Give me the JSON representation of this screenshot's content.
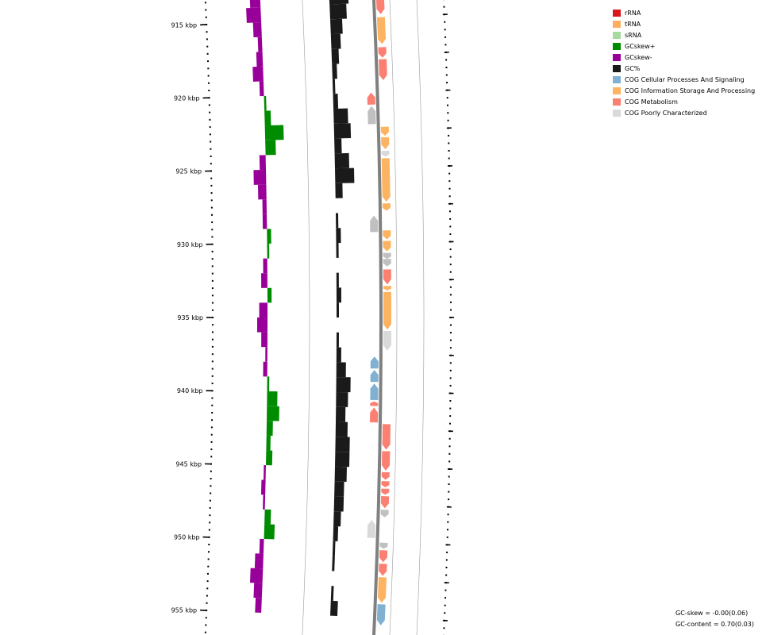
{
  "colors": {
    "rRNA": "#d7191c",
    "tRNA": "#fdae61",
    "sRNA": "#a6dba0",
    "gc_skew_pos": "#008c00",
    "gc_skew_neg": "#990099",
    "gc_content": "#1a1a1a",
    "cog_cellular": "#80b1d3",
    "cog_information": "#fdb462",
    "cog_metabolism": "#fb8072",
    "cog_poorly": "#d9d9d9",
    "cog_unclassified": "#c0c0c0",
    "backbone": "#808080"
  },
  "ticks": [
    {
      "kbp": 915,
      "label": "915 kbp"
    },
    {
      "kbp": 920,
      "label": "920 kbp"
    },
    {
      "kbp": 925,
      "label": "925 kbp"
    },
    {
      "kbp": 930,
      "label": "930 kbp"
    },
    {
      "kbp": 935,
      "label": "935 kbp"
    },
    {
      "kbp": 940,
      "label": "940 kbp"
    },
    {
      "kbp": 945,
      "label": "945 kbp"
    },
    {
      "kbp": 950,
      "label": "950 kbp"
    },
    {
      "kbp": 955,
      "label": "955 kbp"
    }
  ],
  "legend": [
    {
      "label": "rRNA",
      "color": "#d7191c"
    },
    {
      "label": "tRNA",
      "color": "#fdae61"
    },
    {
      "label": "sRNA",
      "color": "#a6dba0"
    },
    {
      "label": "GCskew+",
      "color": "#008c00"
    },
    {
      "label": "GCskew-",
      "color": "#990099"
    },
    {
      "label": "GC%",
      "color": "#1a1a1a"
    },
    {
      "label": "COG Cellular Processes And Signaling",
      "color": "#80b1d3"
    },
    {
      "label": "COG Information Storage And Processing",
      "color": "#fdb462"
    },
    {
      "label": "COG Metabolism",
      "color": "#fb8072"
    },
    {
      "label": "COG Poorly Characterized",
      "color": "#d9d9d9"
    }
  ],
  "gc_skew_profile": [
    {
      "kbp": 910.0,
      "value": 0.08
    },
    {
      "kbp": 911.0,
      "value": 0.06
    },
    {
      "kbp": 912.0,
      "value": -0.06
    },
    {
      "kbp": 913.0,
      "value": -0.05
    },
    {
      "kbp": 914.0,
      "value": -0.07
    },
    {
      "kbp": 915.0,
      "value": -0.04
    },
    {
      "kbp": 916.0,
      "value": -0.02
    },
    {
      "kbp": 917.0,
      "value": -0.03
    },
    {
      "kbp": 918.0,
      "value": -0.05
    },
    {
      "kbp": 919.0,
      "value": -0.02
    },
    {
      "kbp": 920.0,
      "value": 0.01
    },
    {
      "kbp": 921.0,
      "value": 0.03
    },
    {
      "kbp": 922.0,
      "value": 0.09
    },
    {
      "kbp": 923.0,
      "value": 0.05
    },
    {
      "kbp": 924.0,
      "value": -0.03
    },
    {
      "kbp": 925.0,
      "value": -0.06
    },
    {
      "kbp": 926.0,
      "value": -0.04
    },
    {
      "kbp": 927.0,
      "value": -0.02
    },
    {
      "kbp": 928.0,
      "value": -0.02
    },
    {
      "kbp": 929.0,
      "value": 0.02
    },
    {
      "kbp": 930.0,
      "value": 0.01
    },
    {
      "kbp": 931.0,
      "value": -0.02
    },
    {
      "kbp": 932.0,
      "value": -0.03
    },
    {
      "kbp": 933.0,
      "value": 0.02
    },
    {
      "kbp": 934.0,
      "value": -0.04
    },
    {
      "kbp": 935.0,
      "value": -0.05
    },
    {
      "kbp": 936.0,
      "value": -0.03
    },
    {
      "kbp": 937.0,
      "value": -0.01
    },
    {
      "kbp": 938.0,
      "value": -0.02
    },
    {
      "kbp": 939.0,
      "value": 0.01
    },
    {
      "kbp": 940.0,
      "value": 0.05
    },
    {
      "kbp": 941.0,
      "value": 0.06
    },
    {
      "kbp": 942.0,
      "value": 0.03
    },
    {
      "kbp": 943.0,
      "value": 0.02
    },
    {
      "kbp": 944.0,
      "value": 0.03
    },
    {
      "kbp": 945.0,
      "value": -0.01
    },
    {
      "kbp": 946.0,
      "value": -0.02
    },
    {
      "kbp": 947.0,
      "value": -0.01
    },
    {
      "kbp": 948.0,
      "value": 0.03
    },
    {
      "kbp": 949.0,
      "value": 0.05
    },
    {
      "kbp": 950.0,
      "value": -0.02
    },
    {
      "kbp": 951.0,
      "value": -0.04
    },
    {
      "kbp": 952.0,
      "value": -0.06
    },
    {
      "kbp": 953.0,
      "value": -0.04
    },
    {
      "kbp": 954.0,
      "value": -0.03
    },
    {
      "kbp": 955.0,
      "value": -0.02
    }
  ],
  "gc_content_profile": [
    {
      "kbp": 910.0,
      "value": 0.02
    },
    {
      "kbp": 911.0,
      "value": 0.04
    },
    {
      "kbp": 912.0,
      "value": 0.07
    },
    {
      "kbp": 913.0,
      "value": 0.08
    },
    {
      "kbp": 914.0,
      "value": 0.07
    },
    {
      "kbp": 915.0,
      "value": 0.05
    },
    {
      "kbp": 916.0,
      "value": 0.04
    },
    {
      "kbp": 917.0,
      "value": 0.03
    },
    {
      "kbp": 918.0,
      "value": 0.02
    },
    {
      "kbp": 919.0,
      "value": 0.01
    },
    {
      "kbp": 920.0,
      "value": 0.02
    },
    {
      "kbp": 921.0,
      "value": 0.06
    },
    {
      "kbp": 922.0,
      "value": 0.07
    },
    {
      "kbp": 923.0,
      "value": 0.03
    },
    {
      "kbp": 924.0,
      "value": 0.06
    },
    {
      "kbp": 925.0,
      "value": 0.08
    },
    {
      "kbp": 926.0,
      "value": 0.03
    },
    {
      "kbp": 927.0,
      "value": 0.0
    },
    {
      "kbp": 928.0,
      "value": 0.01
    },
    {
      "kbp": 929.0,
      "value": 0.02
    },
    {
      "kbp": 930.0,
      "value": 0.01
    },
    {
      "kbp": 931.0,
      "value": 0.0
    },
    {
      "kbp": 932.0,
      "value": 0.01
    },
    {
      "kbp": 933.0,
      "value": 0.02
    },
    {
      "kbp": 934.0,
      "value": 0.01
    },
    {
      "kbp": 935.0,
      "value": 0.0
    },
    {
      "kbp": 936.0,
      "value": 0.01
    },
    {
      "kbp": 937.0,
      "value": 0.02
    },
    {
      "kbp": 938.0,
      "value": 0.04
    },
    {
      "kbp": 939.0,
      "value": 0.06
    },
    {
      "kbp": 940.0,
      "value": 0.05
    },
    {
      "kbp": 941.0,
      "value": 0.04
    },
    {
      "kbp": 942.0,
      "value": 0.05
    },
    {
      "kbp": 943.0,
      "value": 0.06
    },
    {
      "kbp": 944.0,
      "value": 0.06
    },
    {
      "kbp": 945.0,
      "value": 0.05
    },
    {
      "kbp": 946.0,
      "value": 0.04
    },
    {
      "kbp": 947.0,
      "value": 0.04
    },
    {
      "kbp": 948.0,
      "value": 0.03
    },
    {
      "kbp": 949.0,
      "value": 0.02
    },
    {
      "kbp": 950.0,
      "value": 0.01
    },
    {
      "kbp": 951.0,
      "value": 0.01
    },
    {
      "kbp": 952.0,
      "value": 0.0
    },
    {
      "kbp": 953.0,
      "value": 0.01
    },
    {
      "kbp": 954.0,
      "value": 0.03
    },
    {
      "kbp": 955.0,
      "value": 0.04
    }
  ],
  "features": [
    {
      "strand": 1,
      "start": 910.1,
      "end": 910.9,
      "category": "information"
    },
    {
      "strand": 1,
      "start": 911.0,
      "end": 912.2,
      "category": "poorly"
    },
    {
      "strand": 1,
      "start": 912.2,
      "end": 914.8,
      "category": "metabolism"
    },
    {
      "strand": 1,
      "start": 915.0,
      "end": 916.8,
      "category": "information"
    },
    {
      "strand": 1,
      "start": 917.0,
      "end": 917.7,
      "category": "metabolism"
    },
    {
      "strand": 1,
      "start": 917.8,
      "end": 919.2,
      "category": "metabolism"
    },
    {
      "strand": -1,
      "start": 920.0,
      "end": 920.8,
      "category": "metabolism"
    },
    {
      "strand": -1,
      "start": 920.9,
      "end": 922.1,
      "category": "unclassified"
    },
    {
      "strand": 1,
      "start": 922.3,
      "end": 922.9,
      "category": "information"
    },
    {
      "strand": 1,
      "start": 923.0,
      "end": 923.8,
      "category": "information"
    },
    {
      "strand": 1,
      "start": 923.9,
      "end": 924.3,
      "category": "poorly"
    },
    {
      "strand": 1,
      "start": 924.4,
      "end": 927.3,
      "category": "information"
    },
    {
      "strand": 1,
      "start": 927.4,
      "end": 927.9,
      "category": "information"
    },
    {
      "strand": -1,
      "start": 928.2,
      "end": 929.3,
      "category": "unclassified"
    },
    {
      "strand": 1,
      "start": 929.2,
      "end": 929.8,
      "category": "information"
    },
    {
      "strand": 1,
      "start": 929.9,
      "end": 930.6,
      "category": "information"
    },
    {
      "strand": 1,
      "start": 930.7,
      "end": 931.1,
      "category": "unclassified"
    },
    {
      "strand": 1,
      "start": 931.1,
      "end": 931.6,
      "category": "unclassified"
    },
    {
      "strand": 1,
      "start": 931.8,
      "end": 932.8,
      "category": "metabolism"
    },
    {
      "strand": 1,
      "start": 932.9,
      "end": 933.2,
      "category": "information"
    },
    {
      "strand": 1,
      "start": 933.3,
      "end": 935.8,
      "category": "information"
    },
    {
      "strand": 1,
      "start": 935.9,
      "end": 937.2,
      "category": "poorly"
    },
    {
      "strand": -1,
      "start": 937.6,
      "end": 938.4,
      "category": "cellular"
    },
    {
      "strand": -1,
      "start": 938.5,
      "end": 939.3,
      "category": "cellular"
    },
    {
      "strand": -1,
      "start": 939.4,
      "end": 940.5,
      "category": "cellular"
    },
    {
      "strand": -1,
      "start": 940.6,
      "end": 940.9,
      "category": "metabolism"
    },
    {
      "strand": -1,
      "start": 941.0,
      "end": 942.0,
      "category": "metabolism"
    },
    {
      "strand": 1,
      "start": 942.1,
      "end": 943.8,
      "category": "metabolism"
    },
    {
      "strand": 1,
      "start": 943.9,
      "end": 945.2,
      "category": "metabolism"
    },
    {
      "strand": 1,
      "start": 945.3,
      "end": 945.8,
      "category": "metabolism"
    },
    {
      "strand": 1,
      "start": 945.9,
      "end": 946.3,
      "category": "metabolism"
    },
    {
      "strand": 1,
      "start": 946.4,
      "end": 946.8,
      "category": "metabolism"
    },
    {
      "strand": 1,
      "start": 946.9,
      "end": 947.7,
      "category": "metabolism"
    },
    {
      "strand": 1,
      "start": 947.8,
      "end": 948.3,
      "category": "unclassified"
    },
    {
      "strand": -1,
      "start": 948.5,
      "end": 949.7,
      "category": "poorly"
    },
    {
      "strand": 1,
      "start": 950.0,
      "end": 950.4,
      "category": "unclassified"
    },
    {
      "strand": 1,
      "start": 950.5,
      "end": 951.3,
      "category": "metabolism"
    },
    {
      "strand": 1,
      "start": 951.4,
      "end": 952.2,
      "category": "metabolism"
    },
    {
      "strand": 1,
      "start": 952.3,
      "end": 954.0,
      "category": "information"
    },
    {
      "strand": 1,
      "start": 954.1,
      "end": 955.5,
      "category": "cellular"
    }
  ],
  "stats": {
    "gc_skew": "GC-skew = -0.00(0.06)",
    "gc_content": "GC-content = 0.70(0.03)"
  }
}
